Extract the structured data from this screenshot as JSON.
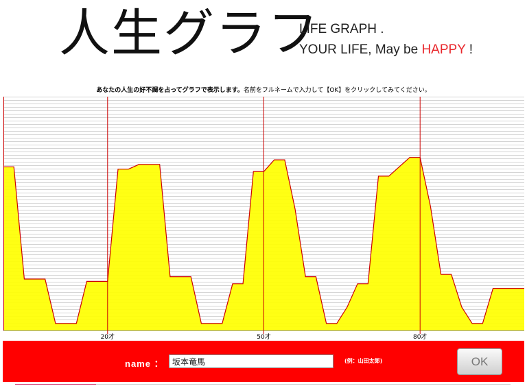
{
  "header": {
    "logo": "人生グラフ",
    "tagline_line1": "LIFE GRAPH .",
    "tagline_line2_prefix": "YOUR LIFE, May be ",
    "tagline_happy": "HAPPY",
    "tagline_suffix": " !"
  },
  "instruction": {
    "bold": "あなたの人生の好不調を占ってグラフで表示します。",
    "rest": "名前をフルネームで入力して【OK】をクリックしてみてください。"
  },
  "form": {
    "name_label": "name ：",
    "name_value": "坂本竜馬",
    "example": "(例：山田太郎)",
    "ok_label": "OK"
  },
  "colors": {
    "fill": "#ffff00",
    "stroke": "#cc0000",
    "grid": "#aaaaaa",
    "marker": "#cc0000",
    "bar": "#ff0000"
  },
  "chart_data": {
    "type": "area",
    "x": [
      0,
      2,
      4,
      6,
      8,
      10,
      12,
      14,
      16,
      18,
      20,
      22,
      24,
      26,
      28,
      30,
      32,
      34,
      36,
      38,
      40,
      42,
      44,
      46,
      48,
      50,
      52,
      54,
      56,
      58,
      60,
      62,
      64,
      66,
      68,
      70,
      72,
      74,
      76,
      78,
      80,
      82,
      84,
      86,
      88,
      90,
      92,
      94,
      96,
      98,
      100
    ],
    "values": [
      70,
      70,
      22,
      22,
      22,
      3,
      3,
      3,
      21,
      21,
      21,
      69,
      69,
      71,
      71,
      71,
      23,
      23,
      23,
      3,
      3,
      3,
      20,
      20,
      68,
      68,
      73,
      73,
      52,
      23,
      23,
      3,
      3,
      10,
      20,
      20,
      66,
      66,
      70,
      74,
      74,
      53,
      24,
      24,
      10,
      3,
      3,
      18,
      18,
      18,
      18
    ],
    "ylim": [
      0,
      100
    ],
    "xlim": [
      0,
      100
    ],
    "markers": [
      20,
      50,
      80
    ],
    "tick_labels": [
      "20才",
      "50才",
      "80才"
    ]
  }
}
